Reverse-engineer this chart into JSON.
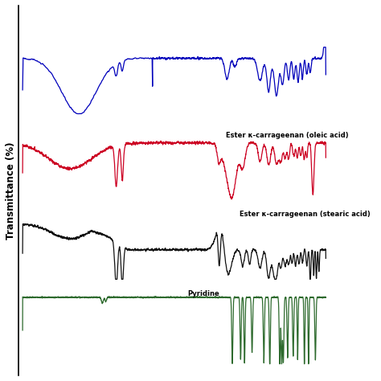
{
  "title": "",
  "ylabel": "Transmittance (%)",
  "xlabel": "",
  "background_color": "#ffffff",
  "line_colors": {
    "blue": "#0000bb",
    "red": "#cc0022",
    "black": "#111111",
    "green": "#2d6a2d"
  },
  "labels": {
    "red": "Ester κ-carrageenan (oleic acid)",
    "black": "Ester κ-carrageenan (stearic acid)",
    "green": "Pyridine"
  },
  "x_range": [
    4000,
    500
  ]
}
